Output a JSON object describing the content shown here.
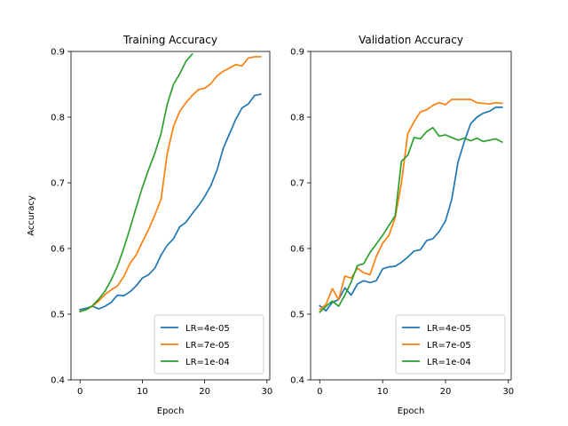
{
  "chart_data": [
    {
      "type": "line",
      "title": "Training Accuracy",
      "xlabel": "Epoch",
      "ylabel": "Accuracy",
      "xlim": [
        -1.45,
        30.45
      ],
      "ylim": [
        0.4,
        0.9
      ],
      "xticks": [
        0,
        10,
        20,
        30
      ],
      "yticks": [
        0.4,
        0.5,
        0.6,
        0.7,
        0.8,
        0.9
      ],
      "legend_position": "lower-right",
      "series": [
        {
          "name": "LR=4e-05",
          "color": "#1f77b4",
          "x": [
            0,
            1,
            2,
            3,
            4,
            5,
            6,
            7,
            8,
            9,
            10,
            11,
            12,
            13,
            14,
            15,
            16,
            17,
            18,
            19,
            20,
            21,
            22,
            23,
            24,
            25,
            26,
            27,
            28,
            29
          ],
          "values": [
            0.507,
            0.509,
            0.512,
            0.508,
            0.512,
            0.518,
            0.529,
            0.528,
            0.534,
            0.543,
            0.555,
            0.56,
            0.57,
            0.59,
            0.605,
            0.615,
            0.633,
            0.64,
            0.653,
            0.665,
            0.679,
            0.696,
            0.72,
            0.753,
            0.775,
            0.797,
            0.814,
            0.82,
            0.833,
            0.835
          ]
        },
        {
          "name": "LR=7e-05",
          "color": "#ff7f0e",
          "x": [
            0,
            1,
            2,
            3,
            4,
            5,
            6,
            7,
            8,
            9,
            10,
            11,
            12,
            13,
            14,
            15,
            16,
            17,
            18,
            19,
            20,
            21,
            22,
            23,
            24,
            25,
            26,
            27,
            28,
            29
          ],
          "values": [
            0.504,
            0.507,
            0.512,
            0.52,
            0.53,
            0.537,
            0.543,
            0.557,
            0.577,
            0.59,
            0.61,
            0.629,
            0.651,
            0.675,
            0.745,
            0.786,
            0.809,
            0.822,
            0.833,
            0.842,
            0.844,
            0.851,
            0.863,
            0.87,
            0.875,
            0.88,
            0.878,
            0.89,
            0.892,
            0.892
          ]
        },
        {
          "name": "LR=1e-04",
          "color": "#2ca02c",
          "x": [
            0,
            1,
            2,
            3,
            4,
            5,
            6,
            7,
            8,
            9,
            10,
            11,
            12,
            13,
            14,
            15,
            16,
            17,
            18
          ],
          "values": [
            0.504,
            0.507,
            0.513,
            0.523,
            0.535,
            0.552,
            0.573,
            0.6,
            0.63,
            0.662,
            0.693,
            0.72,
            0.745,
            0.775,
            0.82,
            0.85,
            0.866,
            0.885,
            0.896
          ]
        }
      ]
    },
    {
      "type": "line",
      "title": "Validation Accuracy",
      "xlabel": "Epoch",
      "ylabel": "",
      "xlim": [
        -1.45,
        30.45
      ],
      "ylim": [
        0.4,
        0.9
      ],
      "xticks": [
        0,
        10,
        20,
        30
      ],
      "yticks": [
        0.4,
        0.5,
        0.6,
        0.7,
        0.8,
        0.9
      ],
      "legend_position": "lower-right",
      "series": [
        {
          "name": "LR=4e-05",
          "color": "#1f77b4",
          "x": [
            0,
            1,
            2,
            3,
            4,
            5,
            6,
            7,
            8,
            9,
            10,
            11,
            12,
            13,
            14,
            15,
            16,
            17,
            18,
            19,
            20,
            21,
            22,
            23,
            24,
            25,
            26,
            27,
            28,
            29
          ],
          "values": [
            0.513,
            0.505,
            0.518,
            0.522,
            0.54,
            0.529,
            0.546,
            0.551,
            0.548,
            0.551,
            0.569,
            0.572,
            0.573,
            0.579,
            0.587,
            0.596,
            0.598,
            0.612,
            0.615,
            0.626,
            0.642,
            0.675,
            0.732,
            0.763,
            0.79,
            0.8,
            0.806,
            0.809,
            0.815,
            0.815
          ]
        },
        {
          "name": "LR=7e-05",
          "color": "#ff7f0e",
          "x": [
            0,
            1,
            2,
            3,
            4,
            5,
            6,
            7,
            8,
            9,
            10,
            11,
            12,
            13,
            14,
            15,
            16,
            17,
            18,
            19,
            20,
            21,
            22,
            23,
            24,
            25,
            26,
            27,
            28,
            29
          ],
          "values": [
            0.507,
            0.515,
            0.539,
            0.522,
            0.558,
            0.555,
            0.57,
            0.563,
            0.56,
            0.588,
            0.608,
            0.62,
            0.647,
            0.7,
            0.775,
            0.793,
            0.808,
            0.811,
            0.818,
            0.822,
            0.819,
            0.827,
            0.827,
            0.827,
            0.827,
            0.822,
            0.821,
            0.82,
            0.822,
            0.821
          ]
        },
        {
          "name": "LR=1e-04",
          "color": "#2ca02c",
          "x": [
            0,
            1,
            2,
            3,
            4,
            5,
            6,
            7,
            8,
            9,
            10,
            11,
            12,
            13,
            14,
            15,
            16,
            17,
            18,
            19,
            20,
            21,
            22,
            23,
            24,
            25,
            26,
            27,
            28,
            29
          ],
          "values": [
            0.503,
            0.512,
            0.52,
            0.512,
            0.529,
            0.549,
            0.574,
            0.577,
            0.594,
            0.607,
            0.62,
            0.635,
            0.65,
            0.733,
            0.742,
            0.769,
            0.767,
            0.778,
            0.784,
            0.771,
            0.773,
            0.769,
            0.765,
            0.768,
            0.764,
            0.768,
            0.763,
            0.765,
            0.767,
            0.762
          ]
        }
      ]
    }
  ]
}
